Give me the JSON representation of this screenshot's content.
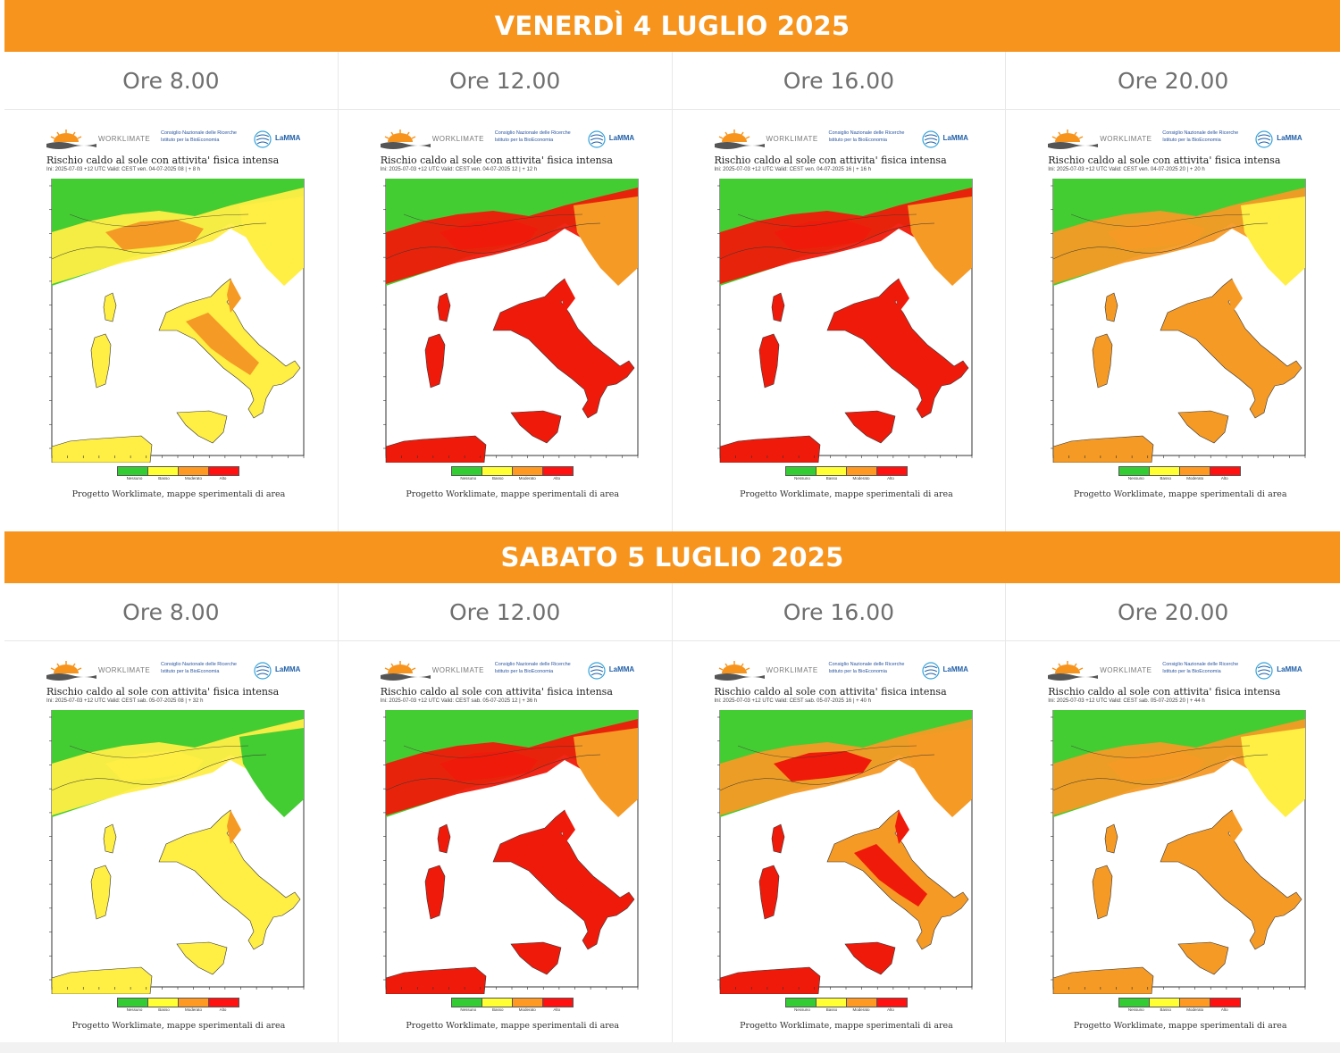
{
  "days": [
    {
      "title": "VENERDÌ 4 LUGLIO 2025",
      "slots": [
        {
          "hour": "Ore 8.00",
          "risk": "moderate-low",
          "validity": "Ini: 2025-07-03 +12 UTC   Valid: CEST ven. 04-07-2025 08 | + 8 h"
        },
        {
          "hour": "Ore 12.00",
          "risk": "high",
          "validity": "Ini: 2025-07-03 +12 UTC   Valid: CEST ven. 04-07-2025 12 | + 12 h"
        },
        {
          "hour": "Ore 16.00",
          "risk": "high",
          "validity": "Ini: 2025-07-03 +12 UTC   Valid: CEST ven. 04-07-2025 16 | + 16 h"
        },
        {
          "hour": "Ore 20.00",
          "risk": "moderate",
          "validity": "Ini: 2025-07-03 +12 UTC   Valid: CEST ven. 04-07-2025 20 | + 20 h"
        }
      ]
    },
    {
      "title": "SABATO 5 LUGLIO 2025",
      "slots": [
        {
          "hour": "Ore 8.00",
          "risk": "low",
          "validity": "Ini: 2025-07-03 +12 UTC   Valid: CEST sab. 05-07-2025 08 | + 32 h"
        },
        {
          "hour": "Ore 12.00",
          "risk": "high",
          "validity": "Ini: 2025-07-03 +12 UTC   Valid: CEST sab. 05-07-2025 12 | + 36 h"
        },
        {
          "hour": "Ore 16.00",
          "risk": "high-moderate",
          "validity": "Ini: 2025-07-03 +12 UTC   Valid: CEST sab. 05-07-2025 16 | + 40 h"
        },
        {
          "hour": "Ore 20.00",
          "risk": "moderate",
          "validity": "Ini: 2025-07-03 +12 UTC   Valid: CEST sab. 05-07-2025 20 | + 44 h"
        }
      ]
    }
  ],
  "map": {
    "brand_worklimate": "WORKLIMATE",
    "brand_cnr": "Consiglio Nazionale delle Ricerche\nIstituto per la BioEconomia",
    "brand_lamma": "LaMMA",
    "title": "Rischio caldo al sole con attivita' fisica intensa",
    "credit": "Progetto Worklimate, mappe  sperimentali di area",
    "legend": [
      {
        "label": "Nessuno",
        "color": "#33cc33"
      },
      {
        "label": "Basso",
        "color": "#ffff33"
      },
      {
        "label": "Moderato",
        "color": "#ff9922"
      },
      {
        "label": "Alto",
        "color": "#ff1111"
      }
    ]
  },
  "colors": {
    "banner": "#f7941d",
    "land_low": "#ffee44",
    "land_green": "#44cc33",
    "land_orange": "#f59a25",
    "land_red": "#f01a0a"
  }
}
